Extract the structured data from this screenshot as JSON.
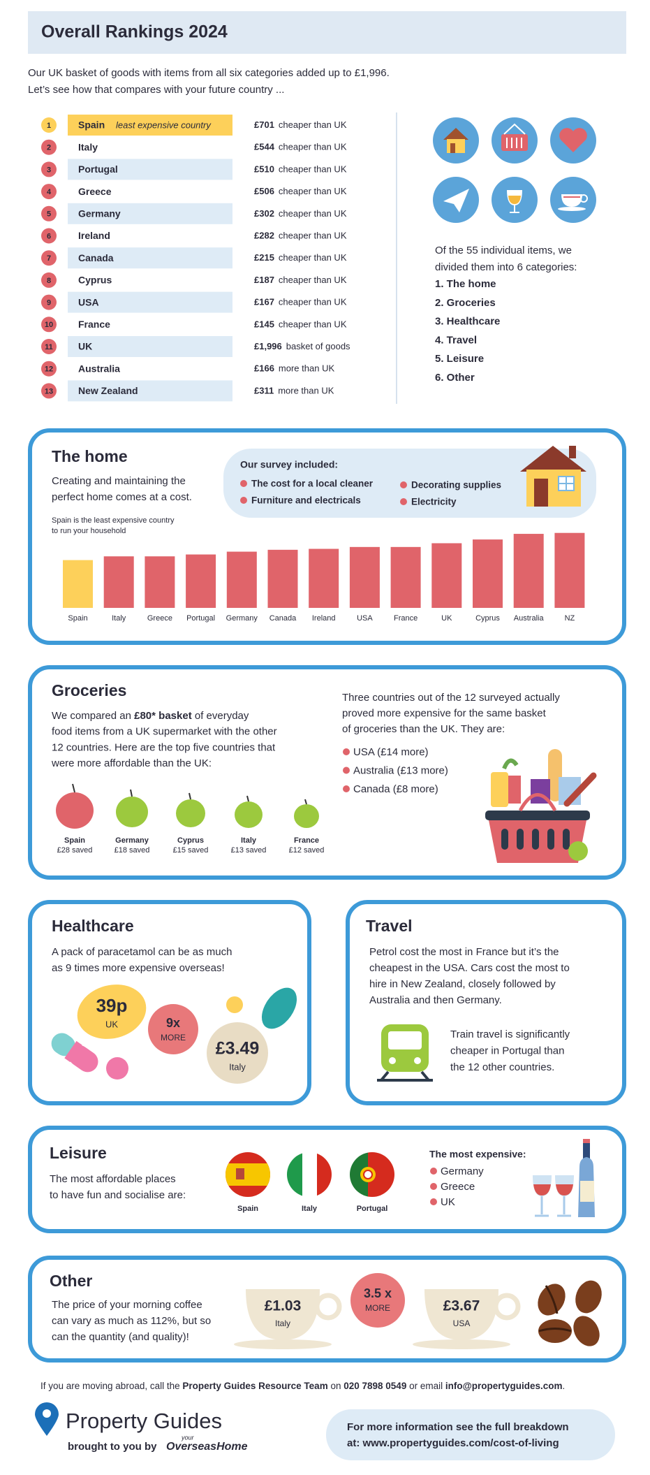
{
  "header": {
    "title": "Overall Rankings 2024",
    "intro": [
      "Our UK basket of goods with items from all six categories added up to £1,996.",
      "Let’s see how that compares with your future country ..."
    ]
  },
  "rankings": [
    {
      "rank": 1,
      "country": "Spain",
      "note": "least expensive country",
      "amount": "£701",
      "comparison": "cheaper than UK"
    },
    {
      "rank": 2,
      "country": "Italy",
      "amount": "£544",
      "comparison": "cheaper than UK"
    },
    {
      "rank": 3,
      "country": "Portugal",
      "amount": "£510",
      "comparison": "cheaper than UK"
    },
    {
      "rank": 4,
      "country": "Greece",
      "amount": "£506",
      "comparison": "cheaper than UK"
    },
    {
      "rank": 5,
      "country": "Germany",
      "amount": "£302",
      "comparison": "cheaper than UK"
    },
    {
      "rank": 6,
      "country": "Ireland",
      "amount": "£282",
      "comparison": "cheaper than UK"
    },
    {
      "rank": 7,
      "country": "Canada",
      "amount": "£215",
      "comparison": "cheaper than UK"
    },
    {
      "rank": 8,
      "country": "Cyprus",
      "amount": "£187",
      "comparison": "cheaper than UK"
    },
    {
      "rank": 9,
      "country": "USA",
      "amount": "£167",
      "comparison": "cheaper than UK"
    },
    {
      "rank": 10,
      "country": "France",
      "amount": "£145",
      "comparison": "cheaper than UK"
    },
    {
      "rank": 11,
      "country": "UK",
      "amount": "£1,996",
      "comparison": "basket of goods"
    },
    {
      "rank": 12,
      "country": "Australia",
      "amount": "£166",
      "comparison": "more than UK"
    },
    {
      "rank": 13,
      "country": "New Zealand",
      "amount": "£311",
      "comparison": "more than UK"
    }
  ],
  "categories": {
    "intro": [
      "Of the 55 individual items, we",
      "divided them into 6 categories:"
    ],
    "items": [
      "1. The home",
      "2. Groceries",
      "3. Healthcare",
      "4. Travel",
      "5. Leisure",
      "6. Other"
    ]
  },
  "home": {
    "title": "The home",
    "description": [
      "Creating and maintaining the",
      "perfect home comes at a cost."
    ],
    "survey_title": "Our survey included:",
    "survey_items": [
      "The cost for a local cleaner",
      "Furniture and electricals",
      "Decorating supplies",
      "Electricity"
    ]
  },
  "chart_data": {
    "type": "bar",
    "annotation": [
      "Spain is the least expensive country",
      "to run your household"
    ],
    "categories": [
      "Spain",
      "Italy",
      "Greece",
      "Portugal",
      "Germany",
      "Canada",
      "Ireland",
      "USA",
      "France",
      "UK",
      "Cyprus",
      "Australia",
      "NZ"
    ],
    "values": [
      51,
      55,
      55,
      57,
      60,
      62,
      63,
      65,
      65,
      69,
      73,
      79,
      80
    ],
    "colors": [
      "#fdd05a",
      "#e0646a",
      "#e0646a",
      "#e0646a",
      "#e0646a",
      "#e0646a",
      "#e0646a",
      "#e0646a",
      "#e0646a",
      "#e0646a",
      "#e0646a",
      "#e0646a",
      "#e0646a"
    ],
    "ylim": [
      0,
      85
    ]
  },
  "groceries": {
    "title": "Groceries",
    "paragraph": [
      [
        "We compared an ",
        "£80* basket",
        " of everyday"
      ],
      [
        "food items from a UK supermarket with the other"
      ],
      [
        "12 countries. Here are the top five countries that"
      ],
      [
        "were more affordable than the UK:"
      ]
    ],
    "savings": [
      {
        "country": "Spain",
        "saved": "£28 saved"
      },
      {
        "country": "Germany",
        "saved": "£18 saved"
      },
      {
        "country": "Cyprus",
        "saved": "£15 saved"
      },
      {
        "country": "Italy",
        "saved": "£13 saved"
      },
      {
        "country": "France",
        "saved": "£12 saved"
      }
    ],
    "more_expensive_intro": [
      "Three countries out of the 12 surveyed actually",
      "proved more expensive for the same basket",
      "of groceries than the UK. They are:"
    ],
    "more_expensive": [
      "USA (£14 more)",
      "Australia (£13 more)",
      "Canada (£8 more)"
    ]
  },
  "healthcare": {
    "title": "Healthcare",
    "text": [
      "A pack of paracetamol can be as much",
      "as 9 times more expensive overseas!"
    ],
    "uk_price": "39p",
    "uk_label": "UK",
    "multiplier": "9x",
    "multiplier_label": "MORE",
    "italy_price": "£3.49",
    "italy_label": "Italy"
  },
  "travel": {
    "title": "Travel",
    "text": [
      "Petrol cost the most in France but it’s the",
      "cheapest in the USA. Cars cost the most to",
      "hire in New Zealand, closely followed by",
      "Australia and then Germany."
    ],
    "train_text": [
      "Train travel is significantly",
      "cheaper in Portugal than",
      "the 12 other countries."
    ]
  },
  "leisure": {
    "title": "Leisure",
    "text": [
      "The most affordable places",
      "to have fun and socialise are:"
    ],
    "flags": [
      "Spain",
      "Italy",
      "Portugal"
    ],
    "expensive_title": "The most expensive:",
    "expensive": [
      "Germany",
      "Greece",
      "UK"
    ]
  },
  "other": {
    "title": "Other",
    "text": [
      "The price of your morning coffee",
      "can vary as much as 112%, but so",
      "can the quantity (and quality)!"
    ],
    "italy_price": "£1.03",
    "italy_label": "Italy",
    "multiplier": "3.5 x",
    "multiplier_label": "MORE",
    "usa_price": "£3.67",
    "usa_label": "USA"
  },
  "footer": {
    "contact": [
      "If you are moving abroad, call the ",
      "Property Guides Resource Team",
      " on ",
      "020 7898 0549",
      " or email ",
      "info@propertyguides.com",
      "."
    ],
    "brand": "Property Guides",
    "byline": "brought to you by",
    "partner_small": "your",
    "partner": "OverseasHome",
    "info": [
      "For more information see the full breakdown",
      "at: www.propertyguides.com/cost-of-living"
    ]
  }
}
